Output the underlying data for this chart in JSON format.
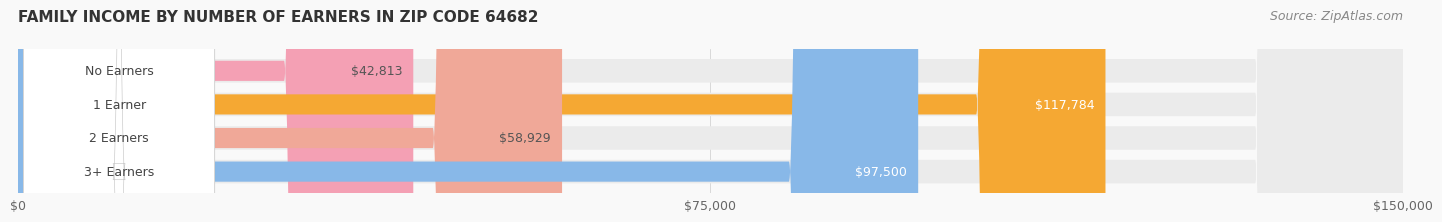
{
  "title": "FAMILY INCOME BY NUMBER OF EARNERS IN ZIP CODE 64682",
  "source": "Source: ZipAtlas.com",
  "categories": [
    "No Earners",
    "1 Earner",
    "2 Earners",
    "3+ Earners"
  ],
  "values": [
    42813,
    117784,
    58929,
    97500
  ],
  "bar_colors": [
    "#f4a0b4",
    "#f5a833",
    "#f0a898",
    "#88b8e8"
  ],
  "label_colors": [
    "#555555",
    "#ffffff",
    "#555555",
    "#ffffff"
  ],
  "track_color": "#ebebeb",
  "x_max": 150000,
  "x_ticks": [
    0,
    75000,
    150000
  ],
  "x_tick_labels": [
    "$0",
    "$75,000",
    "$150,000"
  ],
  "title_fontsize": 11,
  "source_fontsize": 9,
  "bar_label_fontsize": 9,
  "tick_fontsize": 9,
  "background_color": "#f9f9f9"
}
